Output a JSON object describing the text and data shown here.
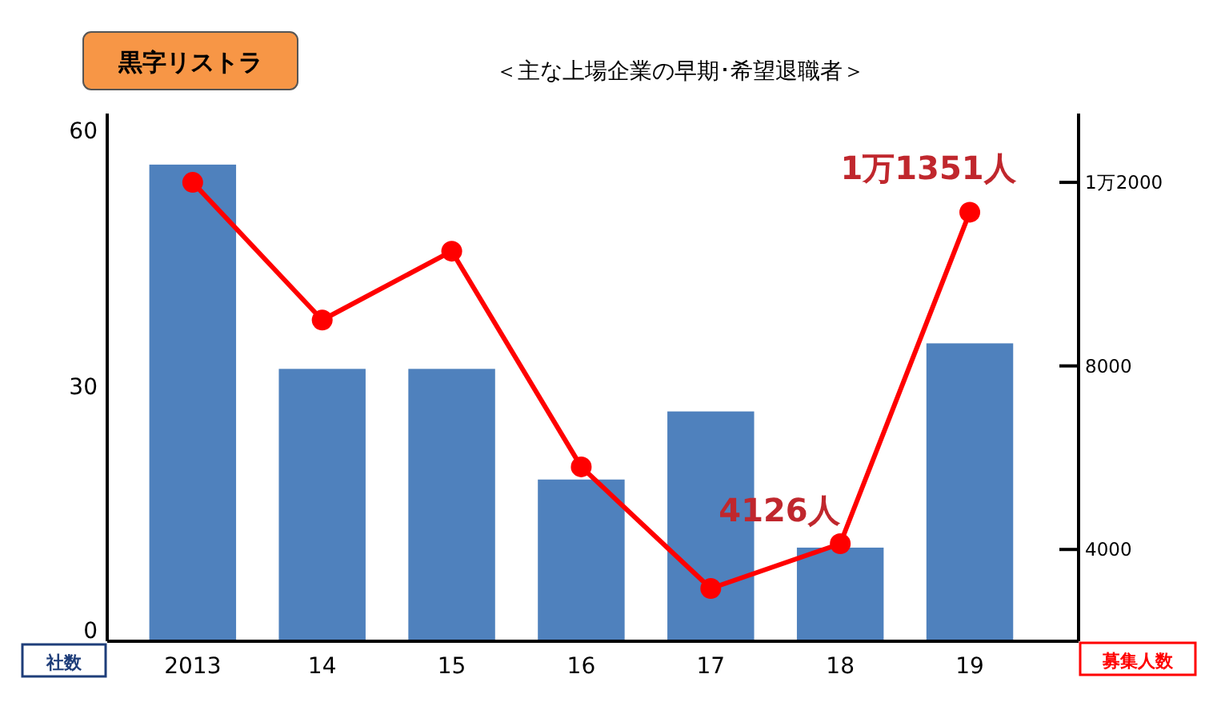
{
  "chart_data": {
    "type": "bar",
    "title": "黒字リストラ",
    "subtitle": "＜主な上場企業の早期･希望退職者＞",
    "ylabel": "社数",
    "y2label": "募集人数",
    "categories": [
      "2013",
      "14",
      "15",
      "16",
      "17",
      "18",
      "19"
    ],
    "series": [
      {
        "color": "#4f81bd",
        "values": [
          56,
          32,
          32,
          19,
          27,
          11,
          35
        ]
      },
      {
        "type": "line",
        "axis": "y2",
        "color": "#ff0000",
        "marker": "circle",
        "values": [
          12000,
          9000,
          10500,
          5800,
          3150,
          4126,
          11350
        ]
      }
    ],
    "annotations": [
      "1万1351人",
      "4126人"
    ],
    "ylim": [
      0,
      62
    ],
    "yticks": [
      0,
      30,
      60
    ],
    "y2lim": [
      2000,
      13500
    ],
    "y2ticks": [
      4000,
      8000,
      {
        "value": 12000,
        "label": "1万2000"
      }
    ],
    "grid": false
  }
}
